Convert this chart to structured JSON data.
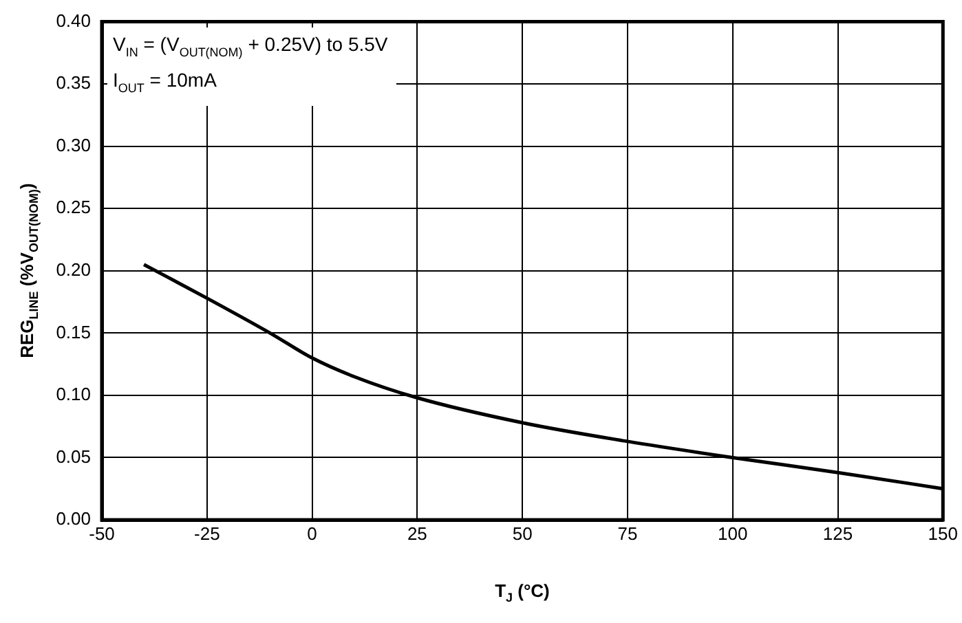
{
  "chart_data": {
    "type": "line",
    "xlabel": "T$_{J}$ (°C)",
    "ylabel": "REG$_{LINE}$ (%V$_{OUT(NOM)}$)",
    "annotations": [
      "V$_{IN}$ = (V$_{OUT(NOM)}$ + 0.25V) to 5.5V",
      "I$_{OUT}$ = 10mA"
    ],
    "x": [
      -40,
      -25,
      -10,
      0,
      10,
      25,
      50,
      75,
      100,
      125,
      150
    ],
    "series": [
      {
        "color": "#000000",
        "values": [
          0.205,
          0.178,
          0.15,
          0.13,
          0.115,
          0.098,
          0.078,
          0.063,
          0.05,
          0.038,
          0.025
        ]
      }
    ],
    "xlim": [
      -50,
      150
    ],
    "xticks": [
      -50,
      -25,
      0,
      25,
      50,
      75,
      100,
      125,
      150
    ],
    "ylim": [
      0,
      0.4
    ],
    "yticks": [
      {
        "value": 0,
        "label": "0.00"
      },
      {
        "value": 0.05,
        "label": "0.05"
      },
      {
        "value": 0.1,
        "label": "0.10"
      },
      {
        "value": 0.15,
        "label": "0.15"
      },
      {
        "value": 0.2,
        "label": "0.20"
      },
      {
        "value": 0.25,
        "label": "0.25"
      },
      {
        "value": 0.3,
        "label": "0.30"
      },
      {
        "value": 0.35,
        "label": "0.35"
      },
      {
        "value": 0.4,
        "label": "0.40"
      }
    ],
    "grid": true,
    "legend": false,
    "marker": "none",
    "line_style": "solid"
  }
}
